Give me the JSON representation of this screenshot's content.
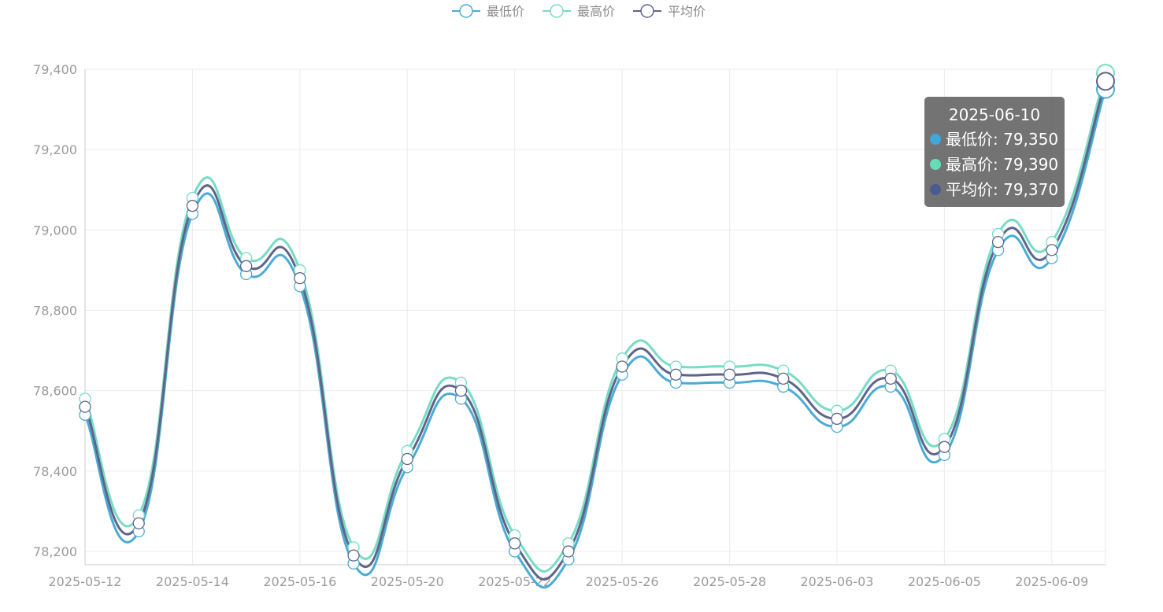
{
  "chart_data": {
    "type": "line",
    "x": [
      "2025-05-12",
      "2025-05-13",
      "2025-05-14",
      "2025-05-15",
      "2025-05-16",
      "2025-05-19",
      "2025-05-20",
      "2025-05-21",
      "2025-05-22",
      "2025-05-23",
      "2025-05-26",
      "2025-05-27",
      "2025-05-28",
      "2025-05-29",
      "2025-06-03",
      "2025-06-04",
      "2025-06-05",
      "2025-06-06",
      "2025-06-09",
      "2025-06-10"
    ],
    "x_tick_labels": [
      "2025-05-12",
      "2025-05-14",
      "2025-05-16",
      "2025-05-20",
      "2025-05-22",
      "2025-05-26",
      "2025-05-28",
      "2025-06-03",
      "2025-06-05",
      "2025-06-09"
    ],
    "series": [
      {
        "name": "最低价",
        "color": "#4aabd6",
        "values": [
          78540,
          78250,
          79040,
          78890,
          78860,
          78170,
          78410,
          78580,
          78200,
          78180,
          78640,
          78620,
          78620,
          78610,
          78510,
          78610,
          78440,
          78950,
          78930,
          79350
        ]
      },
      {
        "name": "最高价",
        "color": "#76dcc4",
        "values": [
          78580,
          78290,
          79080,
          78930,
          78900,
          78210,
          78450,
          78620,
          78240,
          78220,
          78680,
          78660,
          78660,
          78650,
          78550,
          78650,
          78480,
          78990,
          78970,
          79390
        ]
      },
      {
        "name": "平均价",
        "color": "#5f6488",
        "values": [
          78560,
          78270,
          79060,
          78910,
          78880,
          78190,
          78430,
          78600,
          78220,
          78200,
          78660,
          78640,
          78640,
          78630,
          78530,
          78630,
          78460,
          78970,
          78950,
          79370
        ]
      }
    ],
    "ylim": [
      78180,
      79400
    ],
    "y_ticks": [
      78200,
      78400,
      78600,
      78800,
      79000,
      79200,
      79400
    ],
    "y_tick_labels": [
      "78,200",
      "78,400",
      "78,600",
      "78,800",
      "79,000",
      "79,200",
      "79,400"
    ],
    "grid": true,
    "legend_position": "top-center",
    "tooltip": {
      "title": "2025-06-10",
      "rows": [
        {
          "label": "最低价: 79,350",
          "color": "#3fa7dc"
        },
        {
          "label": "最高价: 79,390",
          "color": "#68dcb6"
        },
        {
          "label": "平均价: 79,370",
          "color": "#4c5a92"
        }
      ]
    }
  }
}
